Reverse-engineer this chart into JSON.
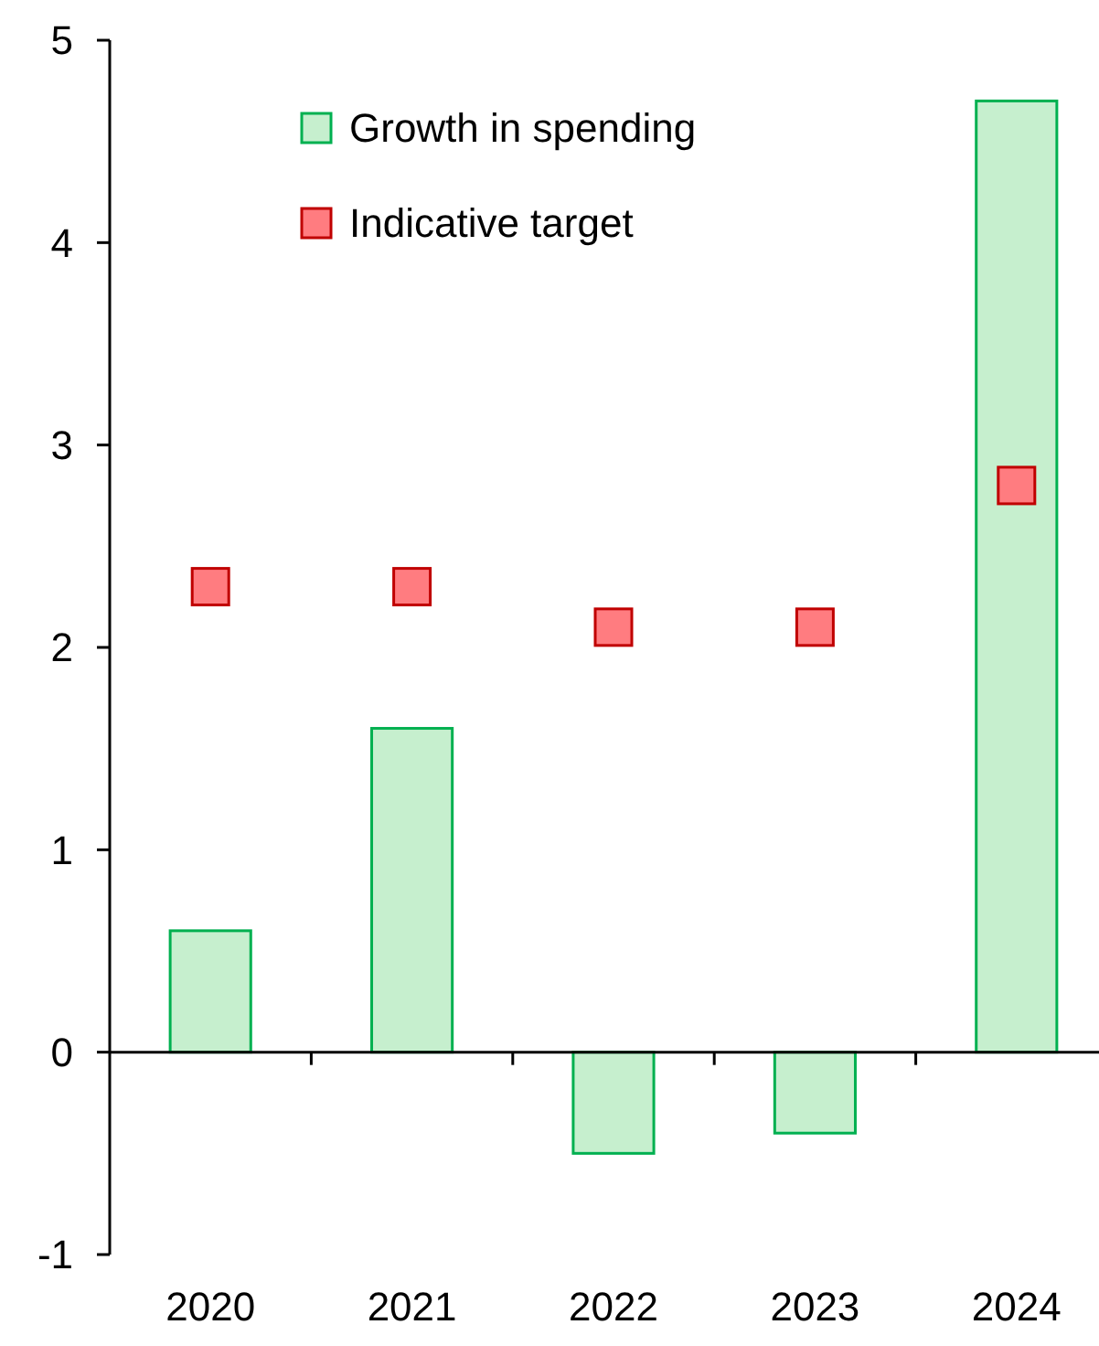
{
  "chart_data": {
    "type": "bar",
    "categories": [
      "2020",
      "2021",
      "2022",
      "2023",
      "2024"
    ],
    "series": [
      {
        "name": "Growth in spending",
        "color": "#c6efce",
        "values": [
          0.6,
          1.6,
          -0.5,
          -0.4,
          4.7
        ]
      },
      {
        "name": "Indicative target",
        "type": "scatter",
        "marker": "square",
        "color": "#ff7c80",
        "values": [
          2.3,
          2.3,
          2.1,
          2.1,
          2.8
        ]
      }
    ],
    "ylim": [
      -1,
      5
    ],
    "yticks": [
      -1,
      0,
      1,
      2,
      3,
      4,
      5
    ],
    "legend": "top left"
  }
}
